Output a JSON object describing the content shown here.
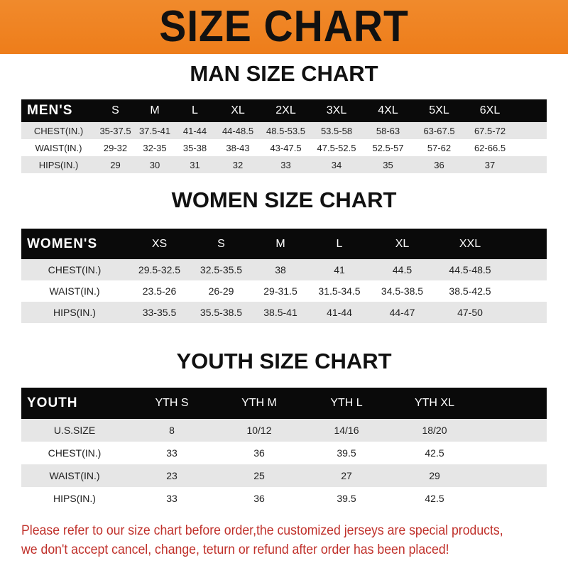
{
  "banner": {
    "title": "SIZE CHART",
    "color": "#ee7d1a"
  },
  "men": {
    "title": "MAN SIZE CHART",
    "header": [
      "MEN'S",
      "S",
      "M",
      "L",
      "XL",
      "2XL",
      "3XL",
      "4XL",
      "5XL",
      "6XL"
    ],
    "rows": [
      [
        "CHEST(IN.)",
        "35-37.5",
        "37.5-41",
        "41-44",
        "44-48.5",
        "48.5-53.5",
        "53.5-58",
        "58-63",
        "63-67.5",
        "67.5-72"
      ],
      [
        "WAIST(IN.)",
        "29-32",
        "32-35",
        "35-38",
        "38-43",
        "43-47.5",
        "47.5-52.5",
        "52.5-57",
        "57-62",
        "62-66.5"
      ],
      [
        "HIPS(IN.)",
        "29",
        "30",
        "31",
        "32",
        "33",
        "34",
        "35",
        "36",
        "37"
      ]
    ]
  },
  "women": {
    "title": "WOMEN SIZE CHART",
    "header": [
      "WOMEN'S",
      "XS",
      "S",
      "M",
      "L",
      "XL",
      "XXL"
    ],
    "rows": [
      [
        "CHEST(IN.)",
        "29.5-32.5",
        "32.5-35.5",
        "38",
        "41",
        "44.5",
        "44.5-48.5"
      ],
      [
        "WAIST(IN.)",
        "23.5-26",
        "26-29",
        "29-31.5",
        "31.5-34.5",
        "34.5-38.5",
        "38.5-42.5"
      ],
      [
        "HIPS(IN.)",
        "33-35.5",
        "35.5-38.5",
        "38.5-41",
        "41-44",
        "44-47",
        "47-50"
      ]
    ]
  },
  "youth": {
    "title": "YOUTH SIZE CHART",
    "header": [
      "YOUTH",
      "YTH S",
      "YTH M",
      "YTH L",
      "YTH XL"
    ],
    "rows": [
      [
        "U.S.SIZE",
        "8",
        "10/12",
        "14/16",
        "18/20"
      ],
      [
        "CHEST(IN.)",
        "33",
        "36",
        "39.5",
        "42.5"
      ],
      [
        "WAIST(IN.)",
        "23",
        "25",
        "27",
        "29"
      ],
      [
        "HIPS(IN.)",
        "33",
        "36",
        "39.5",
        "42.5"
      ]
    ]
  },
  "note": {
    "line1": "Please refer to our size chart before order,the customized jerseys are special products,",
    "line2": "we don't accept cancel, change, teturn or refund after order has been placed!",
    "color": "#c0302a"
  }
}
